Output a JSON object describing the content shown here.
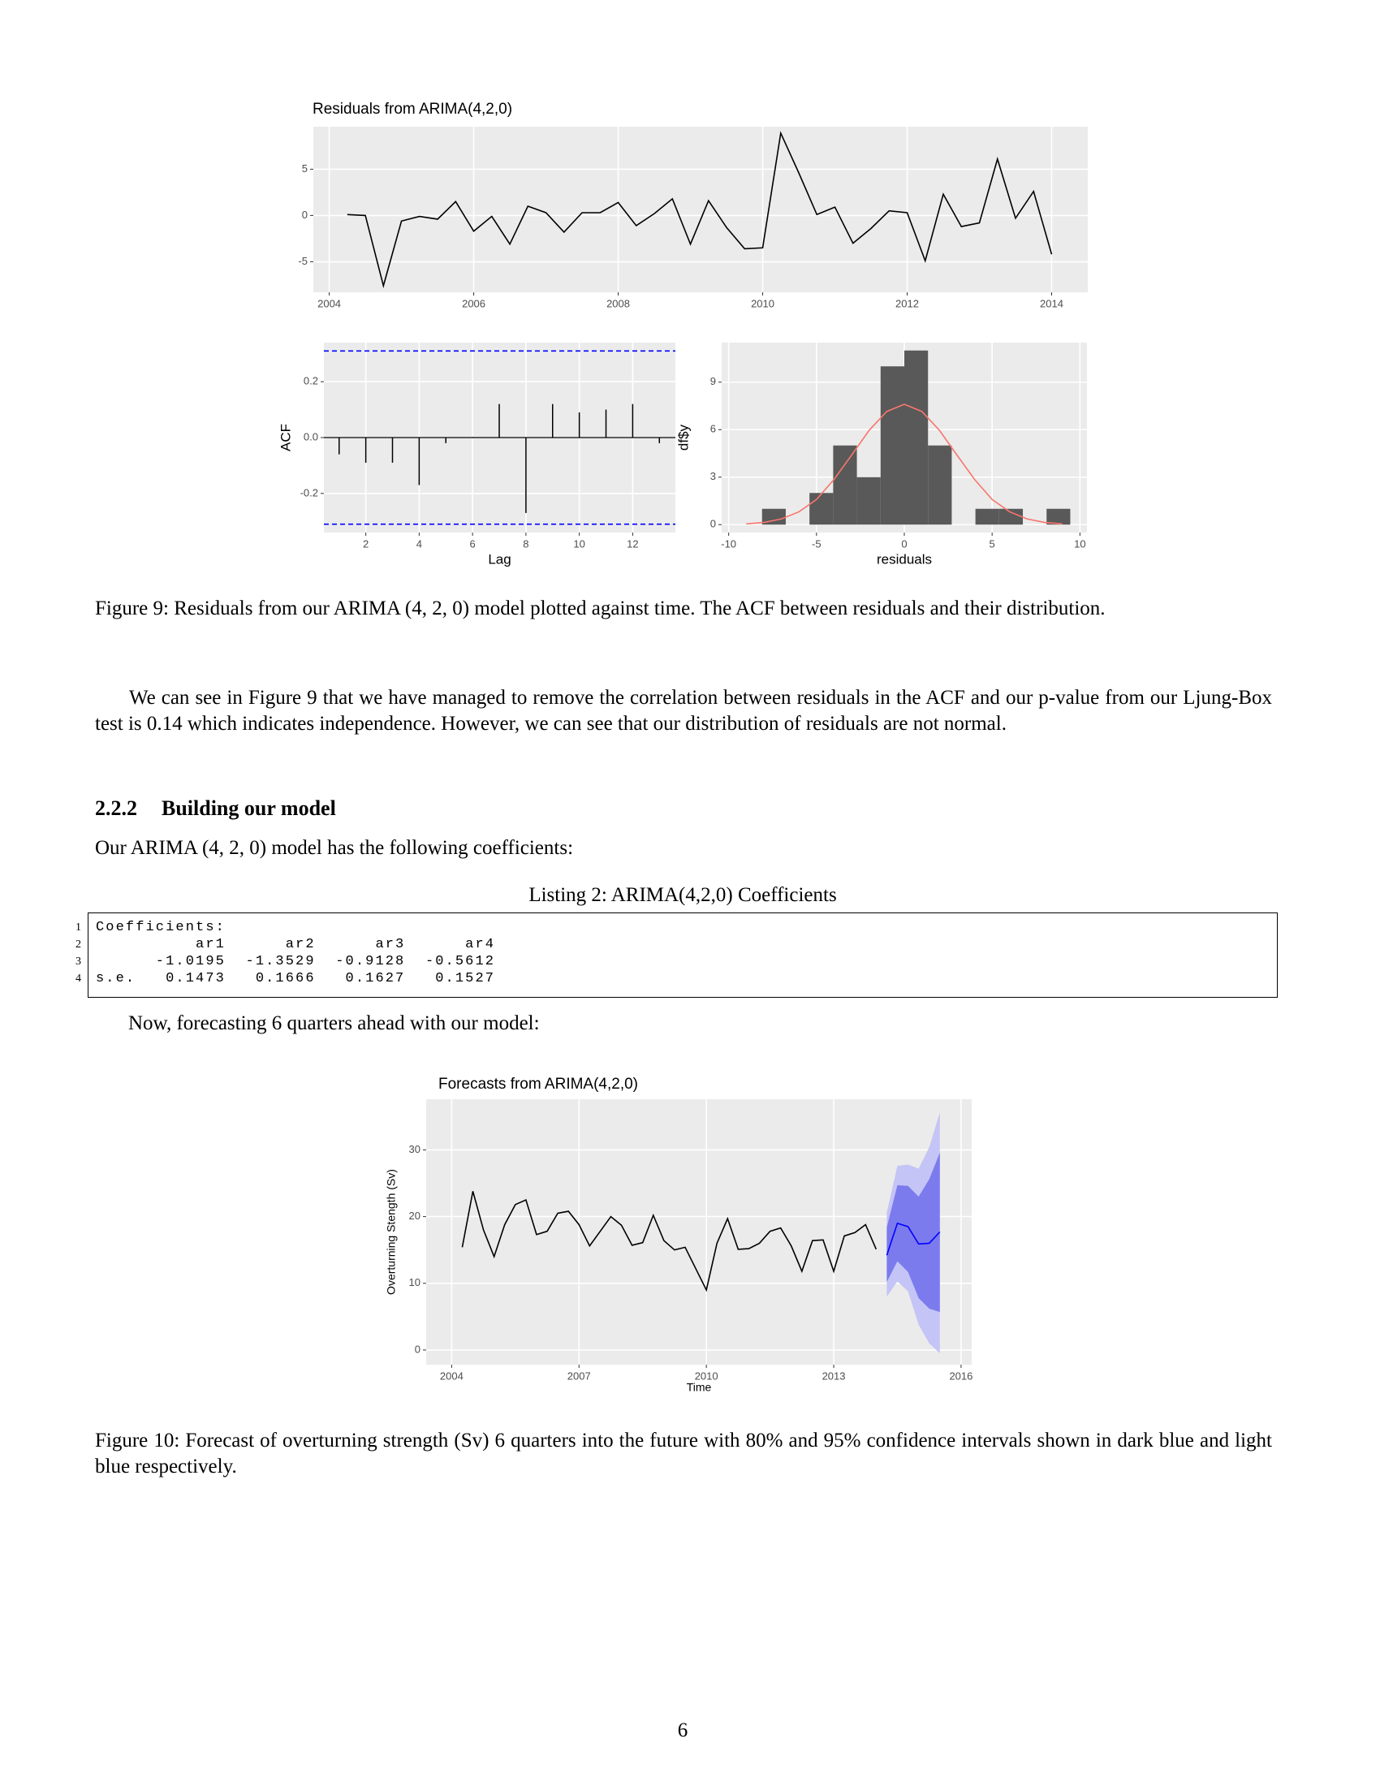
{
  "chart_data": [
    {
      "type": "line",
      "title": "Residuals from ARIMA(4,2,0)",
      "color": "#000000",
      "grid": true,
      "x": [
        2004.25,
        2004.5,
        2004.75,
        2005,
        2005.25,
        2005.5,
        2005.75,
        2006,
        2006.25,
        2006.5,
        2006.75,
        2007,
        2007.25,
        2007.5,
        2007.75,
        2008,
        2008.25,
        2008.5,
        2008.75,
        2009,
        2009.25,
        2009.5,
        2009.75,
        2010,
        2010.25,
        2010.5,
        2010.75,
        2011,
        2011.25,
        2011.5,
        2011.75,
        2012,
        2012.25,
        2012.5,
        2012.75,
        2013,
        2013.25,
        2013.5,
        2013.75,
        2014
      ],
      "values": [
        0.1,
        0,
        -7.6,
        -0.6,
        -0.1,
        -0.4,
        1.5,
        -1.7,
        -0.1,
        -3.1,
        1.0,
        0.3,
        -1.8,
        0.3,
        0.3,
        1.4,
        -1.1,
        0.2,
        1.8,
        -3.1,
        1.6,
        -1.3,
        -3.6,
        -3.5,
        8.9,
        4.6,
        0.1,
        0.9,
        -3.0,
        -1.4,
        0.5,
        0.3,
        -4.9,
        2.3,
        -1.2,
        -0.8,
        6.1,
        -0.3,
        2.6,
        -4.2
      ],
      "xlim": [
        2003.78,
        2014.5
      ],
      "ylim": [
        -8.3,
        9.6
      ],
      "xticks": [
        2004,
        2006,
        2008,
        2010,
        2012,
        2014
      ],
      "yticks": [
        -5,
        0,
        5
      ]
    },
    {
      "type": "bar",
      "xlabel": "Lag",
      "ylabel": "ACF",
      "color": "#000000",
      "grid": true,
      "x": [
        1,
        2,
        3,
        4,
        5,
        6,
        7,
        8,
        9,
        10,
        11,
        12,
        13
      ],
      "values": [
        -0.06,
        -0.09,
        -0.09,
        -0.17,
        -0.02,
        0.002,
        0.12,
        -0.27,
        0.12,
        0.09,
        0.1,
        0.12,
        -0.02
      ],
      "bounds": [
        -0.31,
        0.31
      ],
      "bounds_color": "#0000ff",
      "xlim": [
        0.43,
        13.6
      ],
      "ylim": [
        -0.34,
        0.34
      ],
      "xticks": [
        2,
        4,
        6,
        8,
        10,
        12
      ],
      "yticks": [
        {
          "value": -0.2,
          "label": "-0.2"
        },
        {
          "value": 0,
          "label": "0.0"
        },
        {
          "value": 0.2,
          "label": "0.2"
        }
      ]
    },
    {
      "type": "histogram",
      "xlabel": "residuals",
      "ylabel": "df$y",
      "color": "#595959",
      "grid": true,
      "bins": [
        -8.1,
        -6.75,
        -5.4,
        -4.05,
        -2.7,
        -1.35,
        0,
        1.35,
        2.7,
        4.05,
        5.4,
        6.75,
        8.1,
        9.45
      ],
      "values": [
        1,
        0,
        2,
        5,
        3,
        10,
        11,
        5,
        0,
        1,
        1,
        0,
        1
      ],
      "curve": {
        "color": "#f8766d",
        "x": [
          -9,
          -8,
          -7,
          -6,
          -5,
          -4,
          -3,
          -2,
          -1,
          0,
          1,
          2,
          3,
          4,
          5,
          6,
          7,
          8,
          9
        ],
        "y": [
          0.05,
          0.14,
          0.36,
          0.81,
          1.59,
          2.86,
          4.39,
          5.96,
          7.15,
          7.6,
          7.15,
          5.96,
          4.39,
          2.86,
          1.59,
          0.81,
          0.36,
          0.14,
          0.05
        ]
      },
      "xlim": [
        -10.4,
        10.4
      ],
      "ylim": [
        -0.5,
        11.5
      ],
      "xticks": [
        -10,
        -5,
        0,
        5,
        10
      ],
      "yticks": [
        0,
        3,
        6,
        9
      ]
    },
    {
      "type": "forecast",
      "title": "Forecasts from ARIMA(4,2,0)",
      "xlabel": "Time",
      "ylabel": "Overturning Stength (Sv)",
      "color": "#000000",
      "grid": true,
      "x": [
        2004.25,
        2004.5,
        2004.75,
        2005,
        2005.25,
        2005.5,
        2005.75,
        2006,
        2006.25,
        2006.5,
        2006.75,
        2007,
        2007.25,
        2007.5,
        2007.75,
        2008,
        2008.25,
        2008.5,
        2008.75,
        2009,
        2009.25,
        2009.5,
        2009.75,
        2010,
        2010.25,
        2010.5,
        2010.75,
        2011,
        2011.25,
        2011.5,
        2011.75,
        2012,
        2012.25,
        2012.5,
        2012.75,
        2013,
        2013.25,
        2013.5,
        2013.75,
        2014
      ],
      "values": [
        15.4,
        23.8,
        18,
        14,
        18.8,
        21.8,
        22.5,
        17.3,
        17.8,
        20.5,
        20.8,
        18.8,
        15.6,
        17.8,
        20.0,
        18.7,
        15.7,
        16.1,
        20.2,
        16.4,
        15.0,
        15.4,
        12.2,
        9.0,
        16.0,
        19.7,
        15.1,
        15.2,
        16.0,
        17.8,
        18.3,
        15.6,
        11.8,
        16.4,
        16.5,
        11.8,
        17.1,
        17.6,
        18.8,
        15.1
      ],
      "forecast": {
        "color": "#0000ff",
        "color80": "#7b7bee",
        "color95": "#c4c4f6",
        "x": [
          2014.25,
          2014.5,
          2014.75,
          2015,
          2015.25,
          2015.5
        ],
        "values": [
          14.2,
          19.0,
          18.5,
          15.9,
          16.0,
          17.7
        ],
        "lo80": [
          10.2,
          13.3,
          11.7,
          7.8,
          6.2,
          5.7
        ],
        "hi80": [
          18.4,
          24.7,
          24.6,
          23.0,
          25.6,
          29.6
        ],
        "lo95": [
          8.0,
          10.3,
          8.8,
          3.8,
          1.0,
          -0.5
        ],
        "hi95": [
          20.6,
          27.6,
          27.8,
          27.2,
          30.4,
          35.6
        ]
      },
      "xlim": [
        2003.4,
        2016.25
      ],
      "ylim": [
        -2.2,
        37.6
      ],
      "xticks": [
        2004,
        2007,
        2010,
        2013,
        2016
      ],
      "yticks": [
        0,
        10,
        20,
        30
      ]
    }
  ],
  "document": {
    "figure9_caption": "Figure 9: Residuals from our ARIMA (4, 2, 0) model plotted against time. The ACF between residuals and their distribution.",
    "paragraph1": "We can see in Figure 9 that we have managed to remove the correlation between residuals in the ACF and our p-value from our Ljung-Box test is 0.14  which indicates independence. However, we can see that our distribution of residuals are not normal.",
    "section": {
      "number": "2.2.2",
      "title": "Building our model"
    },
    "intro": "Our ARIMA (4, 2, 0) model has the following coefficients:",
    "listing": {
      "caption": "Listing 2: ARIMA(4,2,0) Coefficients",
      "line_numbers": [
        1,
        2,
        3,
        4
      ],
      "lines": [
        "Coefficients:",
        "          ar1      ar2      ar3      ar4",
        "      -1.0195  -1.3529  -0.9128  -0.5612",
        "s.e.   0.1473   0.1666   0.1627   0.1527"
      ]
    },
    "paragraph2": "Now, forecasting 6 quarters ahead with our model:",
    "figure10_caption": "Figure 10: Forecast of overturning strength (Sv) 6 quarters into the future with 80% and 95% confidence intervals shown in dark blue and light blue respectively.",
    "page_number": 6
  }
}
